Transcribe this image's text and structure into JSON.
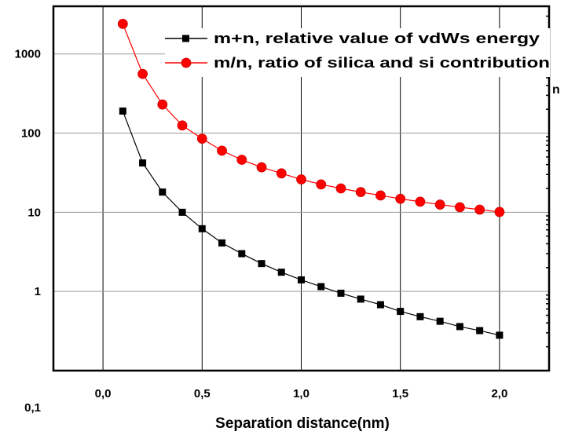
{
  "chart_data": {
    "type": "line",
    "xlabel": "Separation distance(nm)",
    "ylabel": "",
    "x_ticks": [
      "0,0",
      "0,5",
      "1,0",
      "1,5",
      "2,0"
    ],
    "x_tick_values": [
      0.0,
      0.5,
      1.0,
      1.5,
      2.0
    ],
    "y_ticks": [
      "0,1",
      "1",
      "10",
      "100",
      "1000"
    ],
    "y_tick_values": [
      0.1,
      1,
      10,
      100,
      1000
    ],
    "y_scale": "log",
    "xlim": [
      -0.25,
      2.25
    ],
    "ylim": [
      0.1,
      4000
    ],
    "grid": true,
    "legend_position": "top-right",
    "right_axis_label": "n",
    "series": [
      {
        "name": "m+n, relative value of vdWs energy",
        "color": "#000000",
        "marker": "square",
        "x": [
          0.1,
          0.2,
          0.3,
          0.4,
          0.5,
          0.6,
          0.7,
          0.8,
          0.9,
          1.0,
          1.1,
          1.2,
          1.3,
          1.4,
          1.5,
          1.6,
          1.7,
          1.8,
          1.9,
          2.0
        ],
        "values": [
          190,
          42,
          18,
          10,
          6.2,
          4.1,
          3.0,
          2.25,
          1.75,
          1.4,
          1.15,
          0.95,
          0.8,
          0.68,
          0.56,
          0.48,
          0.42,
          0.36,
          0.32,
          0.28
        ]
      },
      {
        "name": "m/n, ratio of silica and si contribution",
        "color": "#ff0000",
        "marker": "circle",
        "x": [
          0.1,
          0.2,
          0.3,
          0.4,
          0.5,
          0.6,
          0.7,
          0.8,
          0.9,
          1.0,
          1.1,
          1.2,
          1.3,
          1.4,
          1.5,
          1.6,
          1.7,
          1.8,
          1.9,
          2.0
        ],
        "values": [
          2400,
          560,
          230,
          125,
          85,
          60,
          46,
          37,
          31,
          26,
          22.5,
          20,
          18,
          16.3,
          14.8,
          13.6,
          12.5,
          11.6,
          10.8,
          10.1
        ]
      }
    ]
  }
}
